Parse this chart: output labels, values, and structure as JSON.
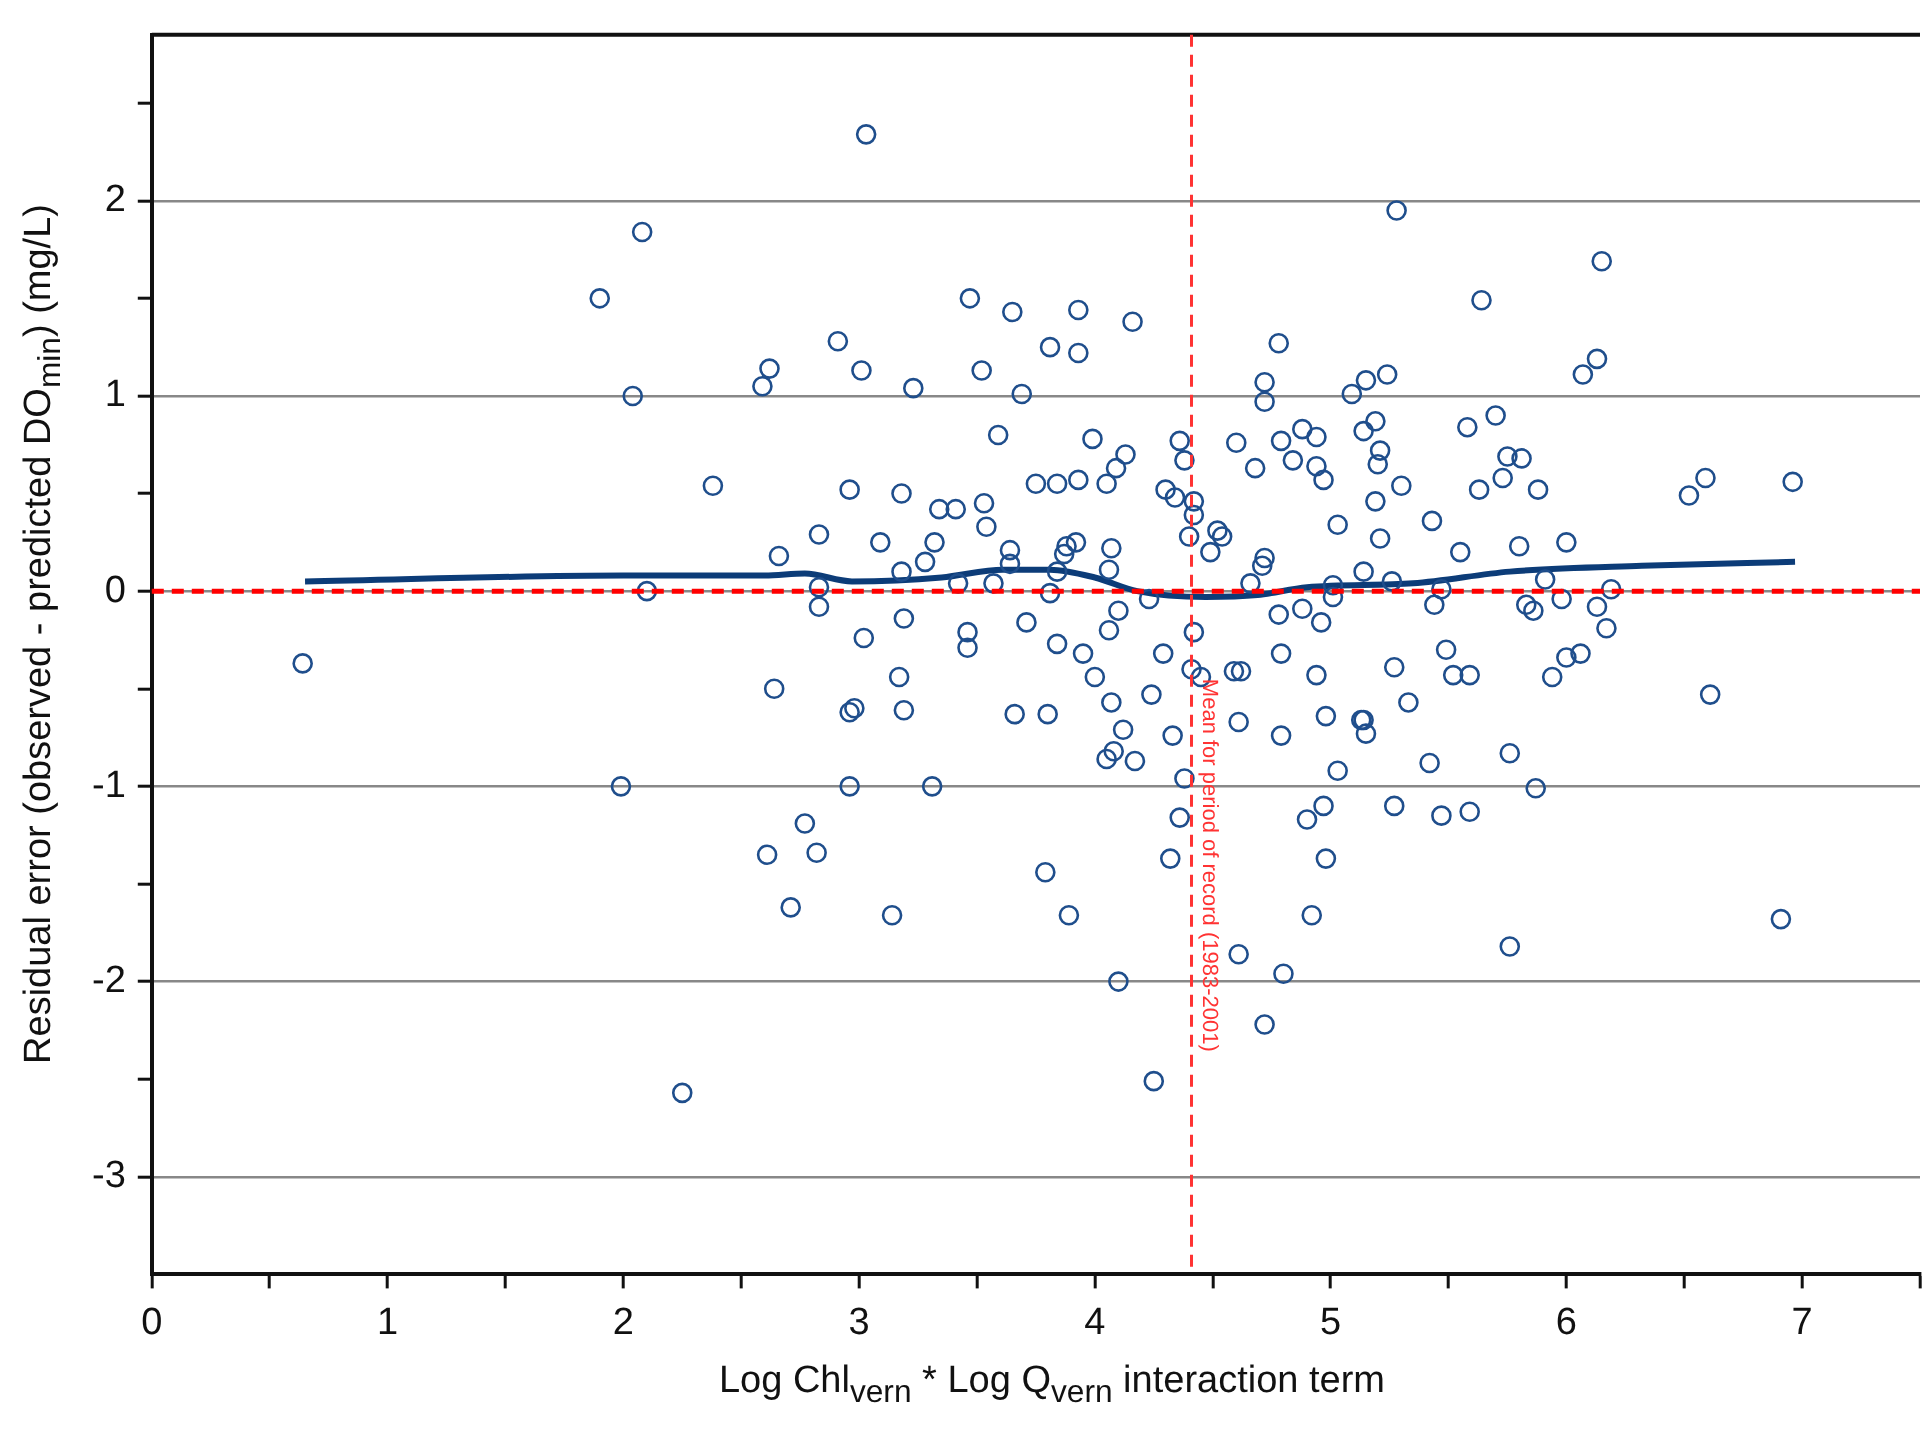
{
  "chart_data": {
    "type": "scatter",
    "xlabel": "Log Chl$_{vern}$ * Log Q$_{vern}$ interaction term",
    "ylabel": "Residual error (observed - predicted DO$_{min}$) (mg/L)",
    "xlim": [
      0,
      7.5
    ],
    "xticks": [
      0,
      {
        "value": 0.5,
        "label": null
      },
      1,
      {
        "value": 1.5,
        "label": null
      },
      2,
      {
        "value": 2.5,
        "label": null
      },
      3,
      {
        "value": 3.5,
        "label": null
      },
      4,
      {
        "value": 4.5,
        "label": null
      },
      5,
      {
        "value": 5.5,
        "label": null
      },
      6,
      {
        "value": 6.5,
        "label": null
      },
      7,
      {
        "value": 7.5,
        "label": null
      }
    ],
    "ylim": [
      -3.5,
      2.85
    ],
    "yticks": [
      -3,
      {
        "value": -2.5,
        "label": null
      },
      -2,
      {
        "value": -1.5,
        "label": null
      },
      -1,
      {
        "value": -0.5,
        "label": null
      },
      0,
      {
        "value": 0.5,
        "label": null
      },
      1,
      {
        "value": 1.5,
        "label": null
      },
      2,
      {
        "value": 2.5,
        "label": null
      }
    ],
    "grid": "y",
    "legend": false,
    "ref_lines": [
      {
        "axis": "y",
        "value": 0,
        "color": "#ff0000",
        "line_style": "dashed"
      },
      {
        "axis": "x",
        "value": 4.41,
        "label": "Mean for period of record (1983-2001)",
        "color": "#ff3333",
        "line_style": "dashed"
      }
    ],
    "series": [
      {
        "marker": "circle",
        "color": "#1f4e8c",
        "x": [
          0.64,
          1.9,
          2.08,
          2.04,
          2.1,
          1.99,
          2.25,
          2.38,
          2.59,
          2.62,
          2.66,
          2.64,
          2.61,
          2.71,
          2.77,
          2.82,
          2.83,
          2.83,
          2.83,
          2.91,
          2.96,
          3.01,
          2.96,
          2.98,
          2.96,
          3.03,
          3.02,
          3.09,
          3.14,
          3.18,
          3.17,
          3.19,
          3.19,
          3.18,
          3.23,
          3.28,
          3.31,
          3.32,
          3.34,
          3.41,
          3.42,
          3.47,
          3.46,
          3.46,
          3.52,
          3.53,
          3.54,
          3.57,
          3.59,
          3.64,
          3.64,
          3.65,
          3.69,
          3.71,
          3.75,
          3.81,
          3.81,
          3.84,
          3.84,
          3.87,
          3.88,
          3.92,
          3.84,
          3.93,
          3.93,
          3.93,
          3.95,
          3.99,
          4.05,
          4.06,
          4.07,
          4.06,
          4.09,
          4.1,
          4.13,
          4.16,
          4.23,
          4.29,
          4.3,
          4.34,
          4.36,
          4.38,
          4.4,
          4.42,
          4.42,
          4.42,
          4.49,
          4.52,
          4.54,
          4.6,
          4.66,
          4.68,
          4.71,
          4.72,
          4.72,
          4.72,
          4.78,
          4.78,
          4.79,
          4.79,
          4.84,
          4.88,
          4.88,
          4.94,
          4.94,
          4.96,
          4.97,
          5.01,
          5.01,
          5.03,
          5.09,
          5.14,
          5.14,
          5.15,
          5.19,
          5.2,
          5.21,
          5.19,
          5.21,
          5.24,
          5.28,
          5.3,
          5.26,
          5.64,
          6.15,
          6.07,
          6.13,
          5.58,
          5.7,
          5.75,
          5.81,
          5.73,
          5.63,
          5.88,
          5.43,
          5.55,
          5.8,
          6.0,
          6.52,
          6.59,
          6.96,
          5.91,
          5.98,
          5.83,
          5.86,
          6.13,
          6.19,
          6.17,
          5.44,
          5.49,
          6.0,
          6.06,
          5.47,
          4.0,
          4.07,
          4.12,
          4.05,
          4.08,
          4.17,
          4.24,
          4.33,
          4.38,
          4.41,
          4.45,
          4.36,
          4.32,
          4.25,
          4.1,
          4.59,
          4.62,
          4.61,
          4.61,
          4.72,
          4.79,
          4.8,
          4.94,
          4.98,
          5.03,
          4.97,
          4.9,
          4.98,
          4.92,
          5.13,
          5.14,
          5.15,
          5.27,
          5.27,
          5.33,
          3.66,
          3.8,
          3.79,
          3.89,
          5.52,
          5.59,
          5.42,
          5.47,
          5.59,
          5.76,
          5.87,
          5.76,
          5.94,
          6.61,
          6.91
        ],
        "values": [
          -0.37,
          1.5,
          1.84,
          1.0,
          0.0,
          -1.0,
          -2.57,
          0.54,
          1.05,
          1.14,
          0.18,
          -0.5,
          -1.35,
          -1.62,
          -1.19,
          -1.34,
          0.02,
          -0.08,
          0.29,
          1.28,
          0.52,
          1.13,
          -0.62,
          -0.6,
          -1.0,
          2.34,
          -0.24,
          0.25,
          -1.66,
          0.1,
          -0.44,
          -0.61,
          -0.14,
          0.5,
          1.04,
          0.15,
          -1.0,
          0.25,
          0.42,
          0.42,
          0.04,
          1.5,
          -0.21,
          -0.29,
          1.13,
          0.45,
          0.33,
          0.04,
          0.8,
          0.21,
          0.14,
          1.43,
          1.01,
          -0.16,
          0.55,
          1.25,
          -0.01,
          0.55,
          0.1,
          0.19,
          0.23,
          0.25,
          -0.27,
          1.44,
          1.22,
          0.57,
          -0.32,
          0.78,
          0.55,
          0.11,
          0.22,
          -0.2,
          0.63,
          -0.1,
          0.7,
          1.38,
          -0.04,
          -0.32,
          0.52,
          0.48,
          0.77,
          0.67,
          0.28,
          0.39,
          0.46,
          -0.21,
          0.2,
          0.31,
          0.28,
          0.76,
          0.04,
          0.63,
          0.13,
          0.17,
          1.07,
          0.97,
          1.27,
          -0.12,
          0.77,
          -0.32,
          0.67,
          0.83,
          -0.09,
          0.79,
          0.64,
          -0.16,
          0.57,
          0.03,
          -0.03,
          0.34,
          1.01,
          0.82,
          0.1,
          1.08,
          0.87,
          0.65,
          0.72,
          0.46,
          0.27,
          1.11,
          1.95,
          0.54,
          0.05,
          1.49,
          1.69,
          1.11,
          1.19,
          0.84,
          0.9,
          0.69,
          0.68,
          0.58,
          0.52,
          0.52,
          0.36,
          0.2,
          0.23,
          0.25,
          0.49,
          0.58,
          0.56,
          0.06,
          -0.04,
          -0.07,
          -0.1,
          -0.08,
          0.01,
          -0.19,
          -0.07,
          -0.3,
          -0.34,
          -0.32,
          0.01,
          -0.44,
          -0.57,
          -0.71,
          -0.86,
          -0.82,
          -0.87,
          -0.53,
          -0.74,
          -0.96,
          -0.4,
          -0.44,
          -1.16,
          -1.37,
          -2.51,
          -2.0,
          -0.41,
          -0.41,
          -0.67,
          -1.86,
          -2.22,
          -0.74,
          -1.96,
          -0.43,
          -0.64,
          -0.92,
          -1.1,
          -1.17,
          -1.37,
          -1.66,
          -0.66,
          -0.66,
          -0.73,
          -0.39,
          -1.1,
          -0.57,
          -0.63,
          -0.63,
          -1.44,
          -1.66,
          -0.43,
          -0.43,
          -0.88,
          -1.15,
          -1.13,
          -0.83,
          -1.01,
          -1.82,
          -0.44,
          -0.53,
          -1.68
        ]
      },
      {
        "type": "line",
        "marker": "none",
        "color": "#0c3c78",
        "x": [
          0.65,
          2.0,
          2.6,
          2.77,
          2.97,
          3.35,
          3.61,
          3.81,
          4.0,
          4.18,
          4.47,
          4.69,
          4.9,
          5.35,
          5.76,
          6.32,
          6.97
        ],
        "values": [
          0.05,
          0.08,
          0.08,
          0.09,
          0.05,
          0.07,
          0.11,
          0.11,
          0.07,
          0.0,
          -0.03,
          -0.02,
          0.02,
          0.04,
          0.1,
          0.13,
          0.15
        ]
      }
    ]
  }
}
